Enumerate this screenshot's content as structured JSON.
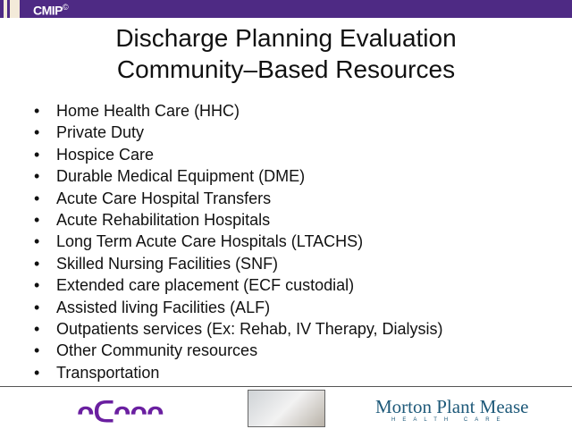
{
  "header": {
    "brand": "CMIP",
    "brand_mark": "©",
    "bar_color": "#4e2a84"
  },
  "title": {
    "line1": "Discharge Planning Evaluation",
    "line2": "Community–Based Resources"
  },
  "bullets": [
    "Home Health Care (HHC)",
    "Private Duty",
    "Hospice Care",
    "Durable Medical Equipment (DME)",
    "Acute Care Hospital Transfers",
    "Acute Rehabilitation Hospitals",
    "Long Term Acute Care Hospitals (LTACHS)",
    "Skilled Nursing Facilities (SNF)",
    "Extended care placement (ECF custodial)",
    "Assisted living Facilities (ALF)",
    "Outpatients services (Ex: Rehab, IV Therapy, Dialysis)",
    "Other Community resources",
    "Transportation"
  ],
  "bullet_symbol": "•",
  "footer": {
    "acma_logo": "acma",
    "mpm_name": "Morton Plant Mease",
    "mpm_sub": "HEALTH CARE"
  }
}
